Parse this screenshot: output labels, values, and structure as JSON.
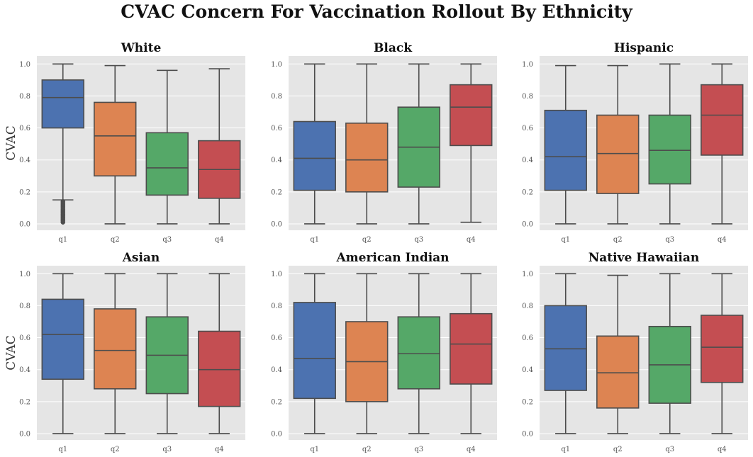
{
  "suptitle": "CVAC Concern For Vaccination Rollout By Ethnicity",
  "colors": {
    "panel_bg": "#e5e5e5",
    "grid": "#ffffff",
    "line": "#4d4d4d",
    "tick_text": "#555555",
    "boxes": [
      "#4c72b0",
      "#dd8452",
      "#55a868",
      "#c44e52"
    ]
  },
  "chart_data": [
    {
      "type": "box",
      "title": "White",
      "ylabel": "CVAC",
      "xlabel": "",
      "categories": [
        "q1",
        "q2",
        "q3",
        "q4"
      ],
      "ylim": [
        -0.04,
        1.05
      ],
      "yticks": [
        "0.0",
        "0.2",
        "0.4",
        "0.6",
        "0.8",
        "1.0"
      ],
      "boxes": [
        {
          "min": 0.15,
          "q1": 0.6,
          "median": 0.79,
          "q3": 0.9,
          "max": 1.0,
          "outliers": [
            0.01,
            0.02,
            0.03,
            0.04,
            0.05,
            0.06,
            0.07,
            0.08,
            0.09,
            0.1,
            0.11,
            0.12,
            0.13,
            0.14
          ]
        },
        {
          "min": 0.0,
          "q1": 0.3,
          "median": 0.55,
          "q3": 0.76,
          "max": 0.99,
          "outliers": []
        },
        {
          "min": 0.0,
          "q1": 0.18,
          "median": 0.35,
          "q3": 0.57,
          "max": 0.96,
          "outliers": []
        },
        {
          "min": 0.0,
          "q1": 0.16,
          "median": 0.34,
          "q3": 0.52,
          "max": 0.97,
          "outliers": []
        }
      ]
    },
    {
      "type": "box",
      "title": "Black",
      "ylabel": "",
      "xlabel": "",
      "categories": [
        "q1",
        "q2",
        "q3",
        "q4"
      ],
      "ylim": [
        -0.04,
        1.05
      ],
      "yticks": [
        "0.0",
        "0.2",
        "0.4",
        "0.6",
        "0.8",
        "1.0"
      ],
      "boxes": [
        {
          "min": 0.0,
          "q1": 0.21,
          "median": 0.41,
          "q3": 0.64,
          "max": 1.0,
          "outliers": []
        },
        {
          "min": 0.0,
          "q1": 0.2,
          "median": 0.4,
          "q3": 0.63,
          "max": 1.0,
          "outliers": []
        },
        {
          "min": 0.0,
          "q1": 0.23,
          "median": 0.48,
          "q3": 0.73,
          "max": 1.0,
          "outliers": []
        },
        {
          "min": 0.01,
          "q1": 0.49,
          "median": 0.73,
          "q3": 0.87,
          "max": 1.0,
          "outliers": []
        }
      ]
    },
    {
      "type": "box",
      "title": "Hispanic",
      "ylabel": "",
      "xlabel": "",
      "categories": [
        "q1",
        "q2",
        "q3",
        "q4"
      ],
      "ylim": [
        -0.04,
        1.05
      ],
      "yticks": [
        "0.0",
        "0.2",
        "0.4",
        "0.6",
        "0.8",
        "1.0"
      ],
      "boxes": [
        {
          "min": 0.0,
          "q1": 0.21,
          "median": 0.42,
          "q3": 0.71,
          "max": 0.99,
          "outliers": []
        },
        {
          "min": 0.0,
          "q1": 0.19,
          "median": 0.44,
          "q3": 0.68,
          "max": 0.99,
          "outliers": []
        },
        {
          "min": 0.0,
          "q1": 0.25,
          "median": 0.46,
          "q3": 0.68,
          "max": 1.0,
          "outliers": []
        },
        {
          "min": 0.0,
          "q1": 0.43,
          "median": 0.68,
          "q3": 0.87,
          "max": 1.0,
          "outliers": []
        }
      ]
    },
    {
      "type": "box",
      "title": "Asian",
      "ylabel": "CVAC",
      "xlabel": "",
      "categories": [
        "q1",
        "q2",
        "q3",
        "q4"
      ],
      "ylim": [
        -0.04,
        1.05
      ],
      "yticks": [
        "0.0",
        "0.2",
        "0.4",
        "0.6",
        "0.8",
        "1.0"
      ],
      "boxes": [
        {
          "min": 0.0,
          "q1": 0.34,
          "median": 0.62,
          "q3": 0.84,
          "max": 1.0,
          "outliers": []
        },
        {
          "min": 0.0,
          "q1": 0.28,
          "median": 0.52,
          "q3": 0.78,
          "max": 1.0,
          "outliers": []
        },
        {
          "min": 0.0,
          "q1": 0.25,
          "median": 0.49,
          "q3": 0.73,
          "max": 1.0,
          "outliers": []
        },
        {
          "min": 0.0,
          "q1": 0.17,
          "median": 0.4,
          "q3": 0.64,
          "max": 1.0,
          "outliers": []
        }
      ]
    },
    {
      "type": "box",
      "title": "American Indian",
      "ylabel": "",
      "xlabel": "",
      "categories": [
        "q1",
        "q2",
        "q3",
        "q4"
      ],
      "ylim": [
        -0.04,
        1.05
      ],
      "yticks": [
        "0.0",
        "0.2",
        "0.4",
        "0.6",
        "0.8",
        "1.0"
      ],
      "boxes": [
        {
          "min": 0.0,
          "q1": 0.22,
          "median": 0.47,
          "q3": 0.82,
          "max": 1.0,
          "outliers": []
        },
        {
          "min": 0.0,
          "q1": 0.2,
          "median": 0.45,
          "q3": 0.7,
          "max": 1.0,
          "outliers": []
        },
        {
          "min": 0.0,
          "q1": 0.28,
          "median": 0.5,
          "q3": 0.73,
          "max": 1.0,
          "outliers": []
        },
        {
          "min": 0.0,
          "q1": 0.31,
          "median": 0.56,
          "q3": 0.75,
          "max": 1.0,
          "outliers": []
        }
      ]
    },
    {
      "type": "box",
      "title": "Native Hawaiian",
      "ylabel": "",
      "xlabel": "",
      "categories": [
        "q1",
        "q2",
        "q3",
        "q4"
      ],
      "ylim": [
        -0.04,
        1.05
      ],
      "yticks": [
        "0.0",
        "0.2",
        "0.4",
        "0.6",
        "0.8",
        "1.0"
      ],
      "boxes": [
        {
          "min": 0.0,
          "q1": 0.27,
          "median": 0.53,
          "q3": 0.8,
          "max": 1.0,
          "outliers": []
        },
        {
          "min": 0.0,
          "q1": 0.16,
          "median": 0.38,
          "q3": 0.61,
          "max": 0.99,
          "outliers": []
        },
        {
          "min": 0.0,
          "q1": 0.19,
          "median": 0.43,
          "q3": 0.67,
          "max": 1.0,
          "outliers": []
        },
        {
          "min": 0.0,
          "q1": 0.32,
          "median": 0.54,
          "q3": 0.74,
          "max": 1.0,
          "outliers": []
        }
      ]
    }
  ]
}
